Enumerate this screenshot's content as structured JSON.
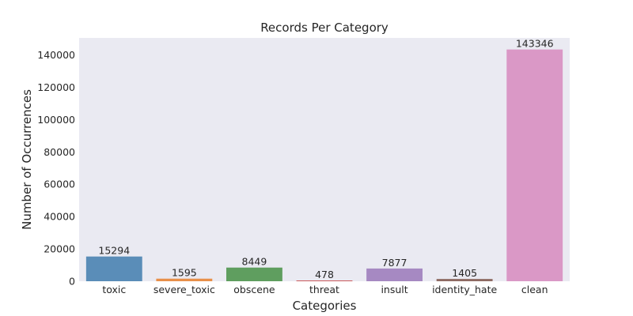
{
  "chart_data": {
    "type": "bar",
    "title": "Records Per Category",
    "xlabel": "Categories",
    "ylabel": "Number of Occurrences",
    "categories": [
      "toxic",
      "severe_toxic",
      "obscene",
      "threat",
      "insult",
      "identity_hate",
      "clean"
    ],
    "values": [
      15294,
      1595,
      8449,
      478,
      7877,
      1405,
      143346
    ],
    "ylim": [
      0,
      150507
    ],
    "yticks": [
      0,
      20000,
      40000,
      60000,
      80000,
      100000,
      120000,
      140000
    ],
    "grid": false,
    "plot_background": "#EAEAF2",
    "colors": [
      "#5A8DB8",
      "#E8904A",
      "#5F9E5F",
      "#C9575A",
      "#A689C2",
      "#8E6A62",
      "#DA98C6"
    ]
  }
}
